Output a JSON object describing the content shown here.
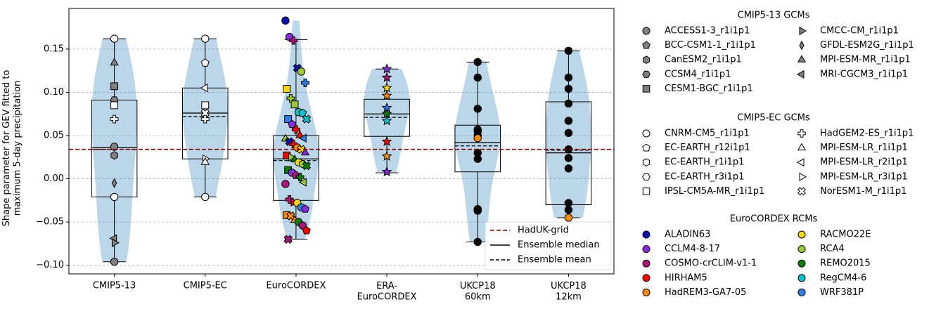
{
  "chart_data": {
    "type": "violin",
    "ylabel": "Shape parameter for GEV fitted to\nmaximum 5-day precipitation",
    "ylim": [
      -0.11,
      0.197
    ],
    "yticks": [
      {
        "value": -0.1,
        "label": "−0.10"
      },
      {
        "value": -0.05,
        "label": "−0.05"
      },
      {
        "value": 0.0,
        "label": "0.00"
      },
      {
        "value": 0.05,
        "label": "0.05"
      },
      {
        "value": 0.1,
        "label": "0.10"
      },
      {
        "value": 0.15,
        "label": "0.15"
      }
    ],
    "grid": true,
    "violin_color": "#1f77b4",
    "categories": [
      "CMIP5-13",
      "CMIP5-EC",
      "EuroCORDEX",
      "ERA-\nEuroCORDEX",
      "UKCP18\n60km",
      "UKCP18\n12km"
    ],
    "reference_line": {
      "name": "HadUK-grid",
      "value": 0.034,
      "color": "#8b0000"
    },
    "median_label": "Ensemble median",
    "mean_label": "Ensemble mean",
    "distributions": [
      {
        "box": {
          "whislo": -0.096,
          "q1": -0.021,
          "med": 0.036,
          "mean": 0.034,
          "q3": 0.091,
          "whishi": 0.162
        },
        "points": [
          {
            "value": 0.162,
            "gcm": "CNRM-CM5_r1i1p1"
          },
          {
            "value": 0.134,
            "gcm": "MPI-ESM-MR_r1i1p1"
          },
          {
            "value": 0.107,
            "gcm": "CESM1-BGC_r1i1p1"
          },
          {
            "value": 0.091,
            "gcm": "CCSM4_r1i1p1"
          },
          {
            "value": 0.085,
            "gcm": "IPSL-CM5A-MR_r1i1p1"
          },
          {
            "value": 0.069,
            "gcm": "HadGEM2-ES_r1i1p1"
          },
          {
            "value": 0.037,
            "gcm": "ACCESS1-3_r1i1p1"
          },
          {
            "value": 0.027,
            "gcm": "CanESM2_r1i1p1"
          },
          {
            "value": -0.005,
            "gcm": "GFDL-ESM2G_r1i1p1"
          },
          {
            "value": -0.021,
            "gcm": "CNRM-CM5_r1i1p1"
          },
          {
            "value": -0.069,
            "gcm": "MRI-CGCM3_r1i1p1"
          },
          {
            "value": -0.074,
            "gcm": "CMCC-CM_r1i1p1"
          },
          {
            "value": -0.096,
            "gcm": "ACCESS1-3_r1i1p1"
          }
        ]
      },
      {
        "box": {
          "whislo": -0.021,
          "q1": 0.023,
          "med": 0.076,
          "mean": 0.072,
          "q3": 0.105,
          "whishi": 0.162
        },
        "points": [
          {
            "value": 0.162,
            "gcm": "CNRM-CM5_r1i1p1"
          },
          {
            "value": 0.134,
            "gcm": "EC-EARTH_r12i1p1"
          },
          {
            "value": 0.105,
            "gcm": "MPI-ESM-LR_r2i1p1"
          },
          {
            "value": 0.085,
            "gcm": "IPSL-CM5A-MR_r1i1p1"
          },
          {
            "value": 0.076,
            "gcm": "NorESM1-M_r1i1p1"
          },
          {
            "value": 0.069,
            "gcm": "HadGEM2-ES_r1i1p1"
          },
          {
            "value": 0.023,
            "gcm": "MPI-ESM-LR_r3i1p1"
          },
          {
            "value": 0.019,
            "gcm": "MPI-ESM-LR_r1i1p1"
          },
          {
            "value": -0.021,
            "gcm": "CNRM-CM5_r1i1p1"
          }
        ]
      },
      {
        "box": {
          "whislo": -0.07,
          "q1": -0.025,
          "med": 0.023,
          "mean": 0.021,
          "q3": 0.05,
          "whishi": 0.161
        },
        "points": [
          {
            "value": 0.183,
            "gcm": "CNRM-CM5_r1i1p1",
            "rcm": "ALADIN63"
          },
          {
            "value": 0.164,
            "gcm": "CNRM-CM5_r1i1p1",
            "rcm": "CCLM4-8-17"
          },
          {
            "value": 0.16,
            "gcm": "HadGEM2-ES_r1i1p1",
            "rcm": "COSMO-crCLIM-v1-1"
          },
          {
            "value": 0.128,
            "gcm": "NorESM1-M_r1i1p1",
            "rcm": "ALADIN63"
          },
          {
            "value": 0.124,
            "gcm": "CNRM-CM5_r1i1p1",
            "rcm": "RCA4"
          },
          {
            "value": 0.111,
            "gcm": "HadGEM2-ES_r1i1p1",
            "rcm": "WRF381P"
          },
          {
            "value": 0.104,
            "gcm": "IPSL-CM5A-MR_r1i1p1",
            "rcm": "RACMO22E"
          },
          {
            "value": 0.093,
            "gcm": "HadGEM2-ES_r1i1p1",
            "rcm": "RCA4"
          },
          {
            "value": 0.086,
            "gcm": "IPSL-CM5A-MR_r1i1p1",
            "rcm": "RCA4"
          },
          {
            "value": 0.077,
            "gcm": "CNRM-CM5_r1i1p1",
            "rcm": "RegCM4-6"
          },
          {
            "value": 0.076,
            "gcm": "EC-EARTH_r12i1p1",
            "rcm": "RegCM4-6"
          },
          {
            "value": 0.069,
            "gcm": "NorESM1-M_r1i1p1",
            "rcm": "RegCM4-6"
          },
          {
            "value": 0.069,
            "gcm": "IPSL-CM5A-MR_r1i1p1",
            "rcm": "WRF381P"
          },
          {
            "value": 0.063,
            "gcm": "EC-EARTH_r12i1p1",
            "rcm": "CCLM4-8-17"
          },
          {
            "value": 0.057,
            "gcm": "HadGEM2-ES_r1i1p1",
            "rcm": "HIRHAM5"
          },
          {
            "value": 0.05,
            "gcm": "MPI-ESM-LR_r1i1p1",
            "rcm": "HIRHAM5"
          },
          {
            "value": 0.047,
            "gcm": "MPI-ESM-LR_r2i1p1",
            "rcm": "WRF381P"
          },
          {
            "value": 0.046,
            "gcm": "MPI-ESM-LR_r1i1p1",
            "rcm": "RCA4"
          },
          {
            "value": 0.043,
            "gcm": "NorESM1-M_r1i1p1",
            "rcm": "ALADIN63"
          },
          {
            "value": 0.04,
            "gcm": "HadGEM2-ES_r1i1p1",
            "rcm": "HIRHAM5"
          },
          {
            "value": 0.036,
            "gcm": "CNRM-CM5_r1i1p1",
            "rcm": "HadREM3-GA7-05"
          },
          {
            "value": 0.034,
            "gcm": "NorESM1-M_r1i1p1",
            "rcm": "RACMO22E"
          },
          {
            "value": 0.03,
            "gcm": "MPI-ESM-LR_r1i1p1",
            "rcm": "CCLM4-8-17"
          },
          {
            "value": 0.027,
            "gcm": "IPSL-CM5A-MR_r1i1p1",
            "rcm": "HIRHAM5"
          },
          {
            "value": 0.025,
            "gcm": "MPI-ESM-LR_r3i1p1",
            "rcm": "RCA4"
          },
          {
            "value": 0.022,
            "gcm": "MPI-ESM-LR_r1i1p1",
            "rcm": "REMO2015"
          },
          {
            "value": 0.019,
            "gcm": "CNRM-CM5_r1i1p1",
            "rcm": "RACMO22E"
          },
          {
            "value": 0.017,
            "gcm": "EC-EARTH_r1i1p1",
            "rcm": "RCA4"
          },
          {
            "value": 0.015,
            "gcm": "NorESM1-M_r1i1p1",
            "rcm": "REMO2015"
          },
          {
            "value": 0.01,
            "gcm": "IPSL-CM5A-MR_r1i1p1",
            "rcm": "REMO2015"
          },
          {
            "value": 0.007,
            "gcm": "CNRM-CM5_r1i1p1",
            "rcm": "CCLM4-8-17"
          },
          {
            "value": 0.004,
            "gcm": "EC-EARTH_r12i1p1",
            "rcm": "COSMO-crCLIM-v1-1"
          },
          {
            "value": 0.002,
            "gcm": "HadGEM2-ES_r1i1p1",
            "rcm": "REMO2015"
          },
          {
            "value": -0.004,
            "gcm": "MPI-ESM-LR_r2i1p1",
            "rcm": "RCA4"
          },
          {
            "value": -0.006,
            "gcm": "CNRM-CM5_r1i1p1",
            "rcm": "COSMO-crCLIM-v1-1"
          },
          {
            "value": -0.024,
            "gcm": "HadGEM2-ES_r1i1p1",
            "rcm": "COSMO-crCLIM-v1-1"
          },
          {
            "value": -0.027,
            "gcm": "MPI-ESM-LR_r3i1p1",
            "rcm": "HIRHAM5"
          },
          {
            "value": -0.028,
            "gcm": "CNRM-CM5_r1i1p1",
            "rcm": "RACMO22E"
          },
          {
            "value": -0.033,
            "gcm": "CNRM-CM5_r1i1p1",
            "rcm": "WRF381P"
          },
          {
            "value": -0.035,
            "gcm": "EC-EARTH_r12i1p1",
            "rcm": "CCLM4-8-17"
          },
          {
            "value": -0.042,
            "gcm": "IPSL-CM5A-MR_r1i1p1",
            "rcm": "HadREM3-GA7-05"
          },
          {
            "value": -0.043,
            "gcm": "NorESM1-M_r1i1p1",
            "rcm": "HadREM3-GA7-05"
          },
          {
            "value": -0.048,
            "gcm": "MPI-ESM-LR_r1i1p1",
            "rcm": "HadREM3-GA7-05"
          },
          {
            "value": -0.05,
            "gcm": "CNRM-CM5_r1i1p1",
            "rcm": "REMO2015"
          },
          {
            "value": -0.054,
            "gcm": "CNRM-CM5_r1i1p1",
            "rcm": "COSMO-crCLIM-v1-1"
          },
          {
            "value": -0.06,
            "gcm": "EC-EARTH_r12i1p1",
            "rcm": "HIRHAM5"
          },
          {
            "value": -0.07,
            "gcm": "NorESM1-M_r1i1p1",
            "rcm": "COSMO-crCLIM-v1-1"
          }
        ]
      },
      {
        "marker": "star",
        "box": {
          "whislo": 0.007,
          "q1": 0.049,
          "med": 0.075,
          "mean": 0.071,
          "q3": 0.092,
          "whishi": 0.127
        },
        "points": [
          {
            "value": 0.127,
            "rcm": "CCLM4-8-17"
          },
          {
            "value": 0.117,
            "rcm": "COSMO-crCLIM-v1-1"
          },
          {
            "value": 0.105,
            "rcm": "RACMO22E"
          },
          {
            "value": 0.096,
            "rcm": "HadREM3-GA7-05"
          },
          {
            "value": 0.082,
            "rcm": "WRF381P"
          },
          {
            "value": 0.075,
            "rcm": "REMO2015"
          },
          {
            "value": 0.067,
            "rcm": "RegCM4-6"
          },
          {
            "value": 0.043,
            "rcm": "HIRHAM5"
          },
          {
            "value": 0.026,
            "rcm": "HadREM3-GA7-05"
          },
          {
            "value": 0.008,
            "rcm": "CCLM4-8-17"
          }
        ]
      },
      {
        "color": "#000000",
        "box": {
          "whislo": -0.073,
          "q1": 0.008,
          "med": 0.042,
          "mean": 0.038,
          "q3": 0.062,
          "whishi": 0.135
        },
        "points": [
          {
            "value": 0.135
          },
          {
            "value": 0.117
          },
          {
            "value": 0.081
          },
          {
            "value": 0.057
          },
          {
            "value": 0.055
          },
          {
            "value": 0.05
          },
          {
            "value": 0.047,
            "rcm": "HadREM3-GA7-05"
          },
          {
            "value": 0.03
          },
          {
            "value": 0.023
          },
          {
            "value": -0.035
          },
          {
            "value": -0.037
          },
          {
            "value": -0.073
          }
        ]
      },
      {
        "color": "#000000",
        "box": {
          "whislo": -0.045,
          "q1": -0.03,
          "med": 0.03,
          "mean": 0.033,
          "q3": 0.089,
          "whishi": 0.148
        },
        "points": [
          {
            "value": 0.148
          },
          {
            "value": 0.117
          },
          {
            "value": 0.104
          },
          {
            "value": 0.087
          },
          {
            "value": 0.067
          },
          {
            "value": 0.053
          },
          {
            "value": 0.034
          },
          {
            "value": 0.024
          },
          {
            "value": 0.012
          },
          {
            "value": -0.028
          },
          {
            "value": -0.036
          },
          {
            "value": -0.045,
            "rcm": "HadREM3-GA7-05"
          }
        ]
      }
    ],
    "legend_groups": [
      {
        "title": "CMIP5-13 GCMs",
        "color": "#808080",
        "entries": [
          {
            "name": "ACCESS1-3_r1i1p1",
            "marker": "circle"
          },
          {
            "name": "BCC-CSM1-1_r1i1p1",
            "marker": "pentagon"
          },
          {
            "name": "CanESM2_r1i1p1",
            "marker": "hexagon"
          },
          {
            "name": "CCSM4_r1i1p1",
            "marker": "hexagon2"
          },
          {
            "name": "CESM1-BGC_r1i1p1",
            "marker": "square"
          },
          {
            "name": "CMCC-CM_r1i1p1",
            "marker": "tri-right"
          },
          {
            "name": "GFDL-ESM2G_r1i1p1",
            "marker": "thin-diamond"
          },
          {
            "name": "MPI-ESM-MR_r1i1p1",
            "marker": "tri-up"
          },
          {
            "name": "MRI-CGCM3_r1i1p1",
            "marker": "tri-left"
          }
        ]
      },
      {
        "title": "CMIP5-EC GCMs",
        "color": "#ffffff",
        "entries": [
          {
            "name": "CNRM-CM5_r1i1p1",
            "marker": "circle"
          },
          {
            "name": "EC-EARTH_r12i1p1",
            "marker": "pentagon"
          },
          {
            "name": "EC-EARTH_r1i1p1",
            "marker": "hexagon"
          },
          {
            "name": "EC-EARTH_r3i1p1",
            "marker": "hexagon2"
          },
          {
            "name": "IPSL-CM5A-MR_r1i1p1",
            "marker": "square"
          },
          {
            "name": "HadGEM2-ES_r1i1p1",
            "marker": "plus"
          },
          {
            "name": "MPI-ESM-LR_r1i1p1",
            "marker": "tri-up"
          },
          {
            "name": "MPI-ESM-LR_r2i1p1",
            "marker": "tri-left"
          },
          {
            "name": "MPI-ESM-LR_r3i1p1",
            "marker": "tri-right"
          },
          {
            "name": "NorESM1-M_r1i1p1",
            "marker": "x"
          }
        ]
      },
      {
        "title": "EuroCORDEX RCMs",
        "entries": [
          {
            "name": "ALADIN63",
            "marker": "circle",
            "color": "#0a0ab4"
          },
          {
            "name": "CCLM4-8-17",
            "marker": "circle",
            "color": "#8a2be2"
          },
          {
            "name": "COSMO-crCLIM-v1-1",
            "marker": "circle",
            "color": "#b0127a"
          },
          {
            "name": "HIRHAM5",
            "marker": "circle",
            "color": "#ff0000"
          },
          {
            "name": "HadREM3-GA7-05",
            "marker": "circle",
            "color": "#ff8c00"
          },
          {
            "name": "RACMO22E",
            "marker": "circle",
            "color": "#ffd700"
          },
          {
            "name": "RCA4",
            "marker": "circle",
            "color": "#9acd32"
          },
          {
            "name": "REMO2015",
            "marker": "circle",
            "color": "#008000"
          },
          {
            "name": "RegCM4-6",
            "marker": "circle",
            "color": "#00c5cd"
          },
          {
            "name": "WRF381P",
            "marker": "circle",
            "color": "#2f7fe8"
          }
        ]
      }
    ]
  }
}
